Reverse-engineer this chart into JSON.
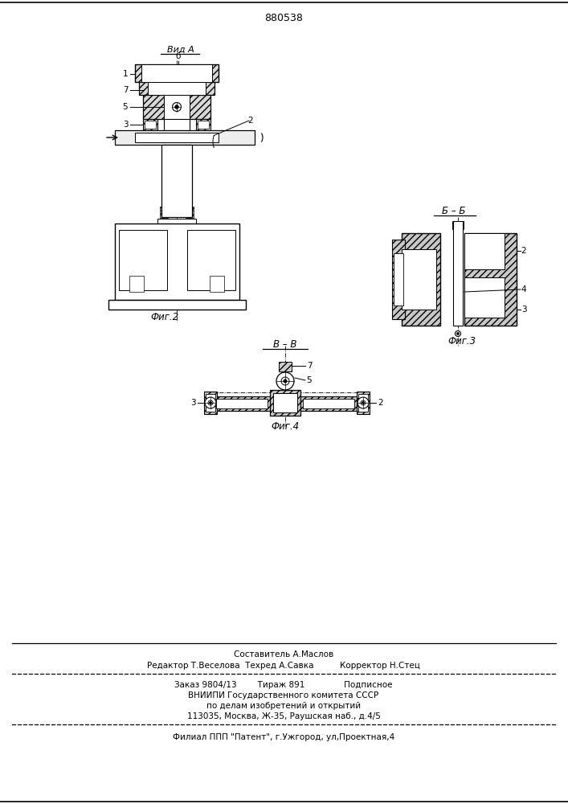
{
  "patent_number": "880538",
  "bg_color": "#ffffff",
  "fig_width": 7.07,
  "fig_height": 10.0,
  "footer_lines": [
    "Составитель А.Маслов",
    "Редактор Т.Веселова  Техред А.Савка          Корректор Н.Стец",
    "Заказ 9804/13        Тираж 891               Подписное",
    "ВНИИПИ Государственного комитета СССР",
    "по делам изобретений и открытий",
    "113035, Москва, Ж-35, Раушская наб., д.4/5",
    "Филиал ППП \"Патент\", г.Ужгород, ул,Проектная,4"
  ],
  "fig2_label": "Фиг.2",
  "fig3_label": "Фиг.3",
  "fig4_label": "Фиг.4",
  "view_a_label": "Вид А",
  "view_bb_label": "Б – Б",
  "view_vv_label": "В – В"
}
